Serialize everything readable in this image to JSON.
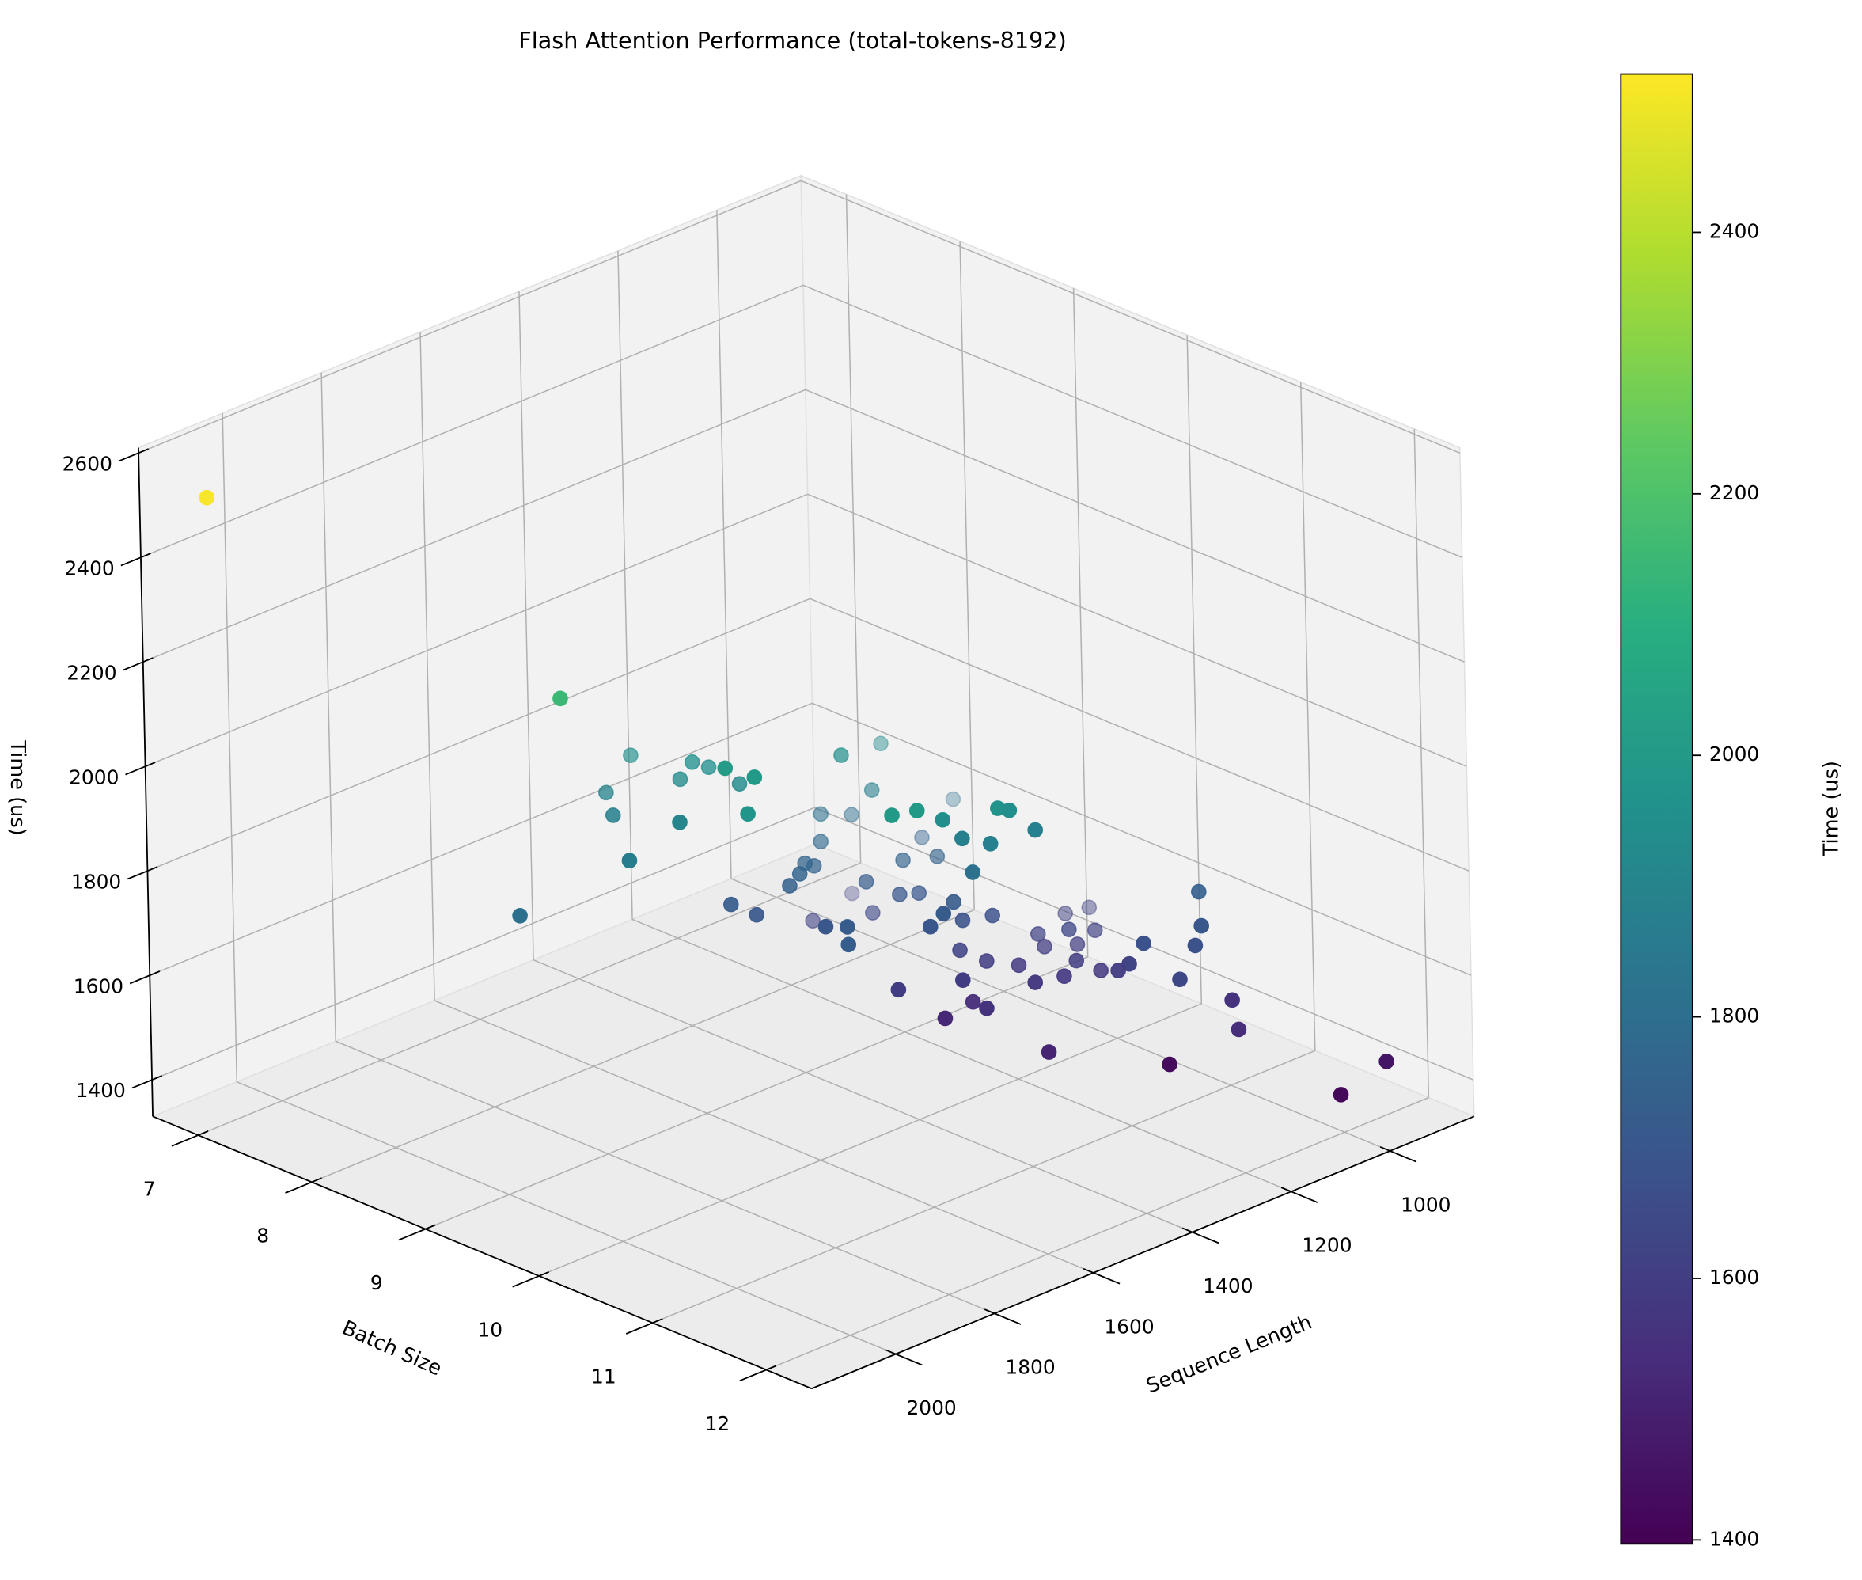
{
  "chart_data": {
    "type": "scatter3d",
    "title": "Flash Attention Performance (total-tokens-8192)",
    "xlabel": "Sequence Length",
    "ylabel": "Batch Size",
    "zlabel": "Time (us)",
    "x": [
      2096,
      1773,
      1915,
      1745,
      1587,
      1640,
      1663,
      1570,
      1554,
      1537,
      1599,
      1579,
      1521,
      1650,
      1638,
      1559,
      1533,
      1479,
      1465,
      1418,
      1434,
      1389,
      1492,
      1496,
      1551,
      1390,
      1373,
      1318,
      1386,
      1279,
      1326,
      1533,
      1496,
      1429,
      1177,
      1239,
      1366,
      1370,
      1338,
      1350,
      1271,
      1362,
      1270,
      1314,
      1366,
      1282,
      1334,
      1338,
      1315,
      1327,
      1386,
      1366,
      1312,
      1270,
      1312,
      1357,
      1286,
      1251,
      1324,
      1351,
      1367,
      1446,
      1332,
      1264,
      1193,
      1115,
      1076,
      1176,
      1126,
      1192,
      1153,
      1194,
      1219,
      1168,
      1174,
      1185,
      1176,
      1186,
      1138,
      1109,
      1079,
      1082,
      1122,
      1138,
      1026,
      949
    ],
    "y": [
      6.87,
      8.54,
      8.77,
      9.0,
      8.33,
      8.34,
      8.5,
      8.69,
      8.73,
      8.8,
      9.22,
      9.39,
      9.0,
      9.64,
      8.98,
      9.07,
      9.18,
      9.24,
      9.27,
      9.19,
      9.18,
      9.04,
      9.61,
      9.82,
      10.07,
      9.13,
      9.06,
      9.09,
      9.31,
      9.19,
      9.31,
      10.4,
      10.46,
      10.39,
      9.37,
      9.36,
      10.28,
      10.62,
      10.58,
      10.46,
      10.51,
      10.35,
      9.63,
      9.52,
      9.42,
      8.92,
      9.33,
      9.59,
      9.66,
      10.02,
      10.07,
      10.1,
      10.03,
      10.11,
      10.0,
      10.22,
      10.12,
      10.25,
      10.16,
      10.4,
      10.1,
      10.04,
      10.86,
      10.45,
      10.17,
      10.07,
      10.11,
      10.37,
      10.38,
      10.22,
      10.34,
      10.51,
      10.51,
      10.61,
      10.89,
      11.07,
      10.8,
      11.39,
      11.32,
      11.25,
      11.1,
      11.39,
      11.62,
      11.07,
      12.09,
      12.16
    ],
    "z": [
      2510,
      2150,
      1810,
      1870,
      1950,
      1900,
      1880,
      1930,
      1960,
      1950,
      2010,
      2000,
      1930,
      1980,
      1900,
      1720,
      1700,
      1740,
      1760,
      1750,
      1760,
      1620,
      1700,
      1720,
      1730,
      1780,
      1820,
      1800,
      1960,
      1930,
      1870,
      2000,
      2000,
      1950,
      1800,
      1750,
      1880,
      1970,
      1950,
      1880,
      1880,
      1820,
      1750,
      1750,
      1720,
      1620,
      1640,
      1700,
      1700,
      1720,
      1700,
      1720,
      1680,
      1680,
      1620,
      1600,
      1600,
      1590,
      1540,
      1560,
      1520,
      1600,
      1510,
      1580,
      1620,
      1620,
      1620,
      1640,
      1620,
      1600,
      1600,
      1600,
      1580,
      1580,
      1620,
      1680,
      1600,
      1640,
      1680,
      1700,
      1740,
      1560,
      1540,
      1430,
      1420,
      1460
    ],
    "xlim": [
      830,
      2170
    ],
    "ylim": [
      6.6,
      12.4
    ],
    "zlim": [
      1330,
      2610
    ],
    "xticks": [
      1000,
      1200,
      1400,
      1600,
      1800,
      2000
    ],
    "yticks": [
      7,
      8,
      9,
      10,
      11,
      12
    ],
    "zticks": [
      1400,
      1600,
      1800,
      2000,
      2200,
      2400,
      2600
    ],
    "colormap": "viridis",
    "depthshade": true,
    "grid": true,
    "colorbar": {
      "label": "Time (us)",
      "clim": [
        1397,
        2521
      ],
      "ticks": [
        1400,
        1600,
        1800,
        2000,
        2200,
        2400
      ]
    }
  }
}
